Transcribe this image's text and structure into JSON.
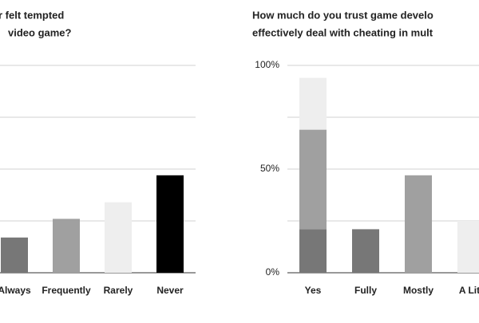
{
  "chart_data": [
    {
      "type": "bar",
      "title_lines": [
        "r felt tempted",
        "video game?"
      ],
      "categories": [
        "Always",
        "Frequently",
        "Rarely",
        "Never"
      ],
      "values": [
        17,
        26,
        34,
        47
      ],
      "colors": [
        "#777777",
        "#a0a0a0",
        "#eeeeee",
        "#000000"
      ],
      "ylim": [
        0,
        100
      ],
      "gridlines": [
        0,
        25,
        50,
        75,
        100
      ]
    },
    {
      "type": "stacked_bar",
      "title_lines": [
        "How much do you trust game develo",
        "effectively deal with cheating in mult"
      ],
      "categories": [
        "Yes",
        "Fully",
        "Mostly",
        "A Litt"
      ],
      "series": [
        {
          "color": "#777777",
          "values": [
            21,
            21,
            null,
            null
          ]
        },
        {
          "color": "#a0a0a0",
          "values": [
            48,
            null,
            47,
            null
          ]
        },
        {
          "color": "#eeeeee",
          "values": [
            25,
            null,
            null,
            25
          ]
        }
      ],
      "ylim": [
        0,
        100
      ],
      "gridlines": [
        0,
        25,
        50,
        75,
        100
      ],
      "yticks": [
        {
          "value": 0,
          "label": "0%"
        },
        {
          "value": 50,
          "label": "50%"
        },
        {
          "value": 100,
          "label": "100%"
        }
      ]
    }
  ]
}
